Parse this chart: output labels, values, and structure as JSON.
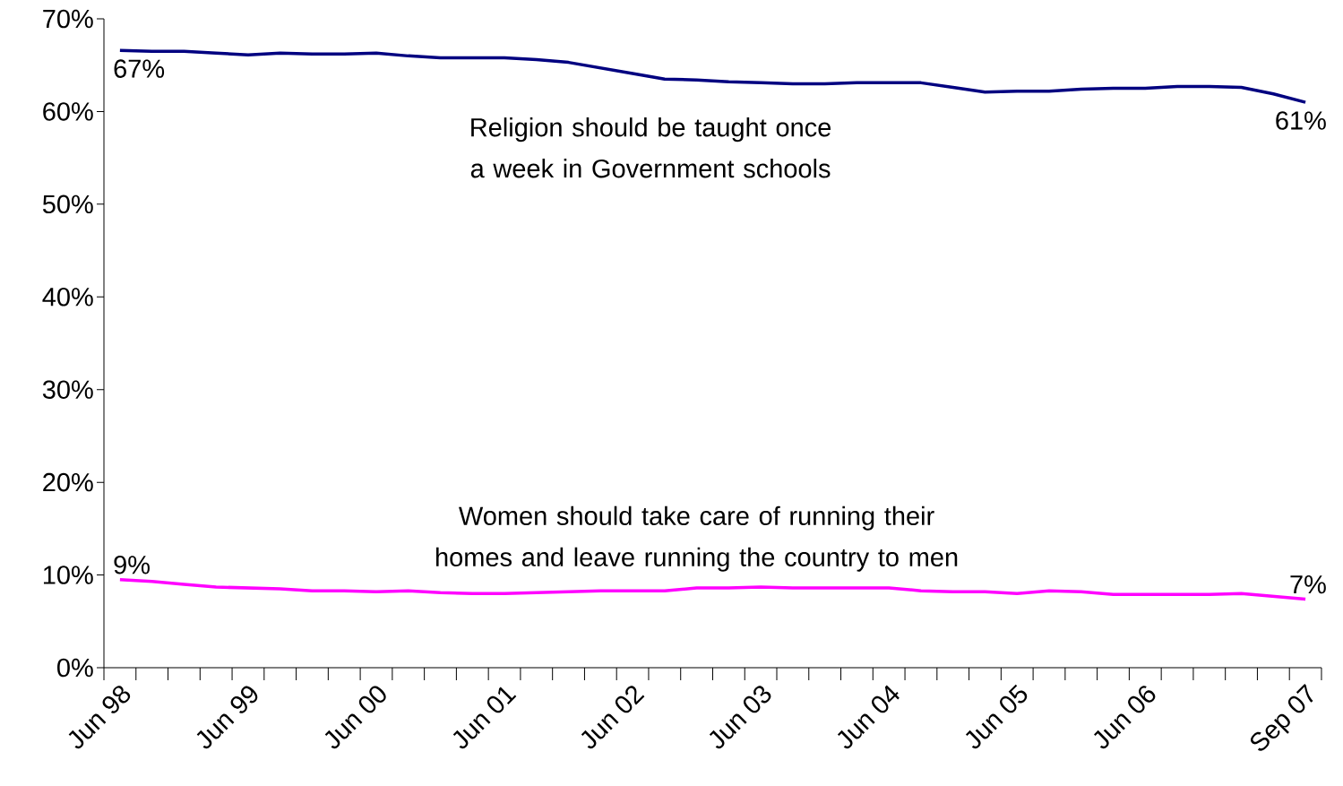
{
  "chart_data": {
    "type": "line",
    "categories": [
      "Jun 98",
      null,
      null,
      null,
      "Jun 99",
      null,
      null,
      null,
      "Jun 00",
      null,
      null,
      null,
      "Jun 01",
      null,
      null,
      null,
      "Jun 02",
      null,
      null,
      null,
      "Jun 03",
      null,
      null,
      null,
      "Jun 04",
      null,
      null,
      null,
      "Jun 05",
      null,
      null,
      null,
      "Jun 06",
      null,
      null,
      null,
      null,
      "Sep 07"
    ],
    "ylim": [
      0,
      70
    ],
    "yticks": [
      {
        "value": 0,
        "label": "0%"
      },
      {
        "value": 10,
        "label": "10%"
      },
      {
        "value": 20,
        "label": "20%"
      },
      {
        "value": 30,
        "label": "30%"
      },
      {
        "value": 40,
        "label": "40%"
      },
      {
        "value": 50,
        "label": "50%"
      },
      {
        "value": 60,
        "label": "60%"
      },
      {
        "value": 70,
        "label": "70%"
      }
    ],
    "grid": false,
    "legend": false,
    "marker": "none",
    "line_style": "solid",
    "series": [
      {
        "name": "Religion should be taught once a week in Government schools",
        "color": "#000080",
        "values": [
          66.6,
          66.5,
          66.5,
          66.3,
          66.1,
          66.3,
          66.2,
          66.2,
          66.3,
          66.0,
          65.8,
          65.8,
          65.8,
          65.6,
          65.3,
          64.7,
          64.1,
          63.5,
          63.4,
          63.2,
          63.1,
          63.0,
          63.0,
          63.1,
          63.1,
          63.1,
          62.6,
          62.1,
          62.2,
          62.2,
          62.4,
          62.5,
          62.5,
          62.7,
          62.7,
          62.6,
          61.9,
          61.0
        ],
        "value_labels": [
          "67%",
          null,
          null,
          null,
          null,
          null,
          null,
          null,
          null,
          null,
          null,
          null,
          null,
          null,
          null,
          null,
          null,
          null,
          null,
          null,
          null,
          null,
          null,
          null,
          null,
          null,
          null,
          null,
          null,
          null,
          null,
          null,
          null,
          null,
          null,
          null,
          null,
          "61%"
        ]
      },
      {
        "name": "Women should take care of running their homes and leave running the country to men",
        "color": "#ff00ff",
        "values": [
          9.5,
          9.3,
          9.0,
          8.7,
          8.6,
          8.5,
          8.3,
          8.3,
          8.2,
          8.3,
          8.1,
          8.0,
          8.0,
          8.1,
          8.2,
          8.3,
          8.3,
          8.3,
          8.6,
          8.6,
          8.7,
          8.6,
          8.6,
          8.6,
          8.6,
          8.3,
          8.2,
          8.2,
          8.0,
          8.3,
          8.2,
          7.9,
          7.9,
          7.9,
          7.9,
          8.0,
          7.7,
          7.4
        ],
        "value_labels": [
          "9%",
          null,
          null,
          null,
          null,
          null,
          null,
          null,
          null,
          null,
          null,
          null,
          null,
          null,
          null,
          null,
          null,
          null,
          null,
          null,
          null,
          null,
          null,
          null,
          null,
          null,
          null,
          null,
          null,
          null,
          null,
          null,
          null,
          null,
          null,
          null,
          null,
          "7%"
        ]
      }
    ]
  }
}
